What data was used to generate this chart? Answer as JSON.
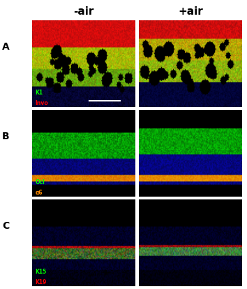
{
  "title_fontsize": 11,
  "label_fontsize": 10,
  "col_labels": [
    "-air",
    "+air"
  ],
  "row_labels": [
    "A",
    "B",
    "C"
  ],
  "legend_texts": [
    [
      [
        "K1",
        "#00ff00"
      ],
      [
        "Invo",
        "#ff0000"
      ]
    ],
    [
      [
        "Ocl",
        "#00ff00"
      ],
      [
        "α6",
        "#ff8c00"
      ]
    ],
    [
      [
        "K15",
        "#00ff00"
      ],
      [
        "K19",
        "#ff0000"
      ]
    ]
  ],
  "background_color": "#000000",
  "figure_bg": "#ffffff",
  "col_label_color": "#000000",
  "row_label_color": "#000000"
}
